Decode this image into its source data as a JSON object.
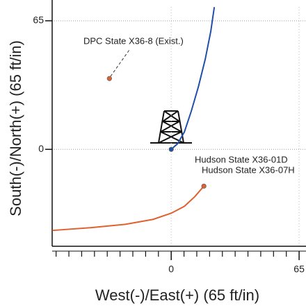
{
  "chart_data": {
    "type": "line",
    "x_label": "West(-)/East(+) (65 ft/in)",
    "y_label": "South(-)/North(+) (65 ft/in)",
    "xlim": [
      -60.5,
      68.5
    ],
    "ylim": [
      -49,
      72
    ],
    "xticks": [
      0,
      65
    ],
    "yticks": [
      0,
      65
    ],
    "xminorticks": [
      -58.5,
      -52,
      -45.5,
      -39,
      -32.5,
      -26,
      -19.5,
      -13,
      -6.5,
      6.5,
      13,
      19.5,
      26,
      32.5,
      39,
      45.5,
      52,
      58.5
    ],
    "grid": true,
    "series": [
      {
        "name": "Hudson State X36-01D",
        "color": "#1f4fa8",
        "x": [
          0,
          3.2,
          6.7,
          10.2,
          13.8,
          17.3,
          20.1,
          21.9
        ],
        "values": [
          0,
          2.8,
          8.8,
          19.3,
          31.6,
          45.6,
          59.6,
          71.9
        ]
      },
      {
        "name": "Hudson State X36-07H",
        "color": "#e0602e",
        "x": [
          16.6,
          12,
          6.7,
          0,
          -9.2,
          -23.3,
          -41,
          -60.4
        ],
        "values": [
          -18.6,
          -23.9,
          -28.8,
          -32.3,
          -35.4,
          -37.9,
          -39.6,
          -41
        ]
      },
      {
        "name": "DPC State X36-8 (Exist.)",
        "color": "#e0602e",
        "marker_only": true,
        "x": [
          -31.4
        ],
        "values": [
          35.8
        ]
      }
    ]
  }
}
